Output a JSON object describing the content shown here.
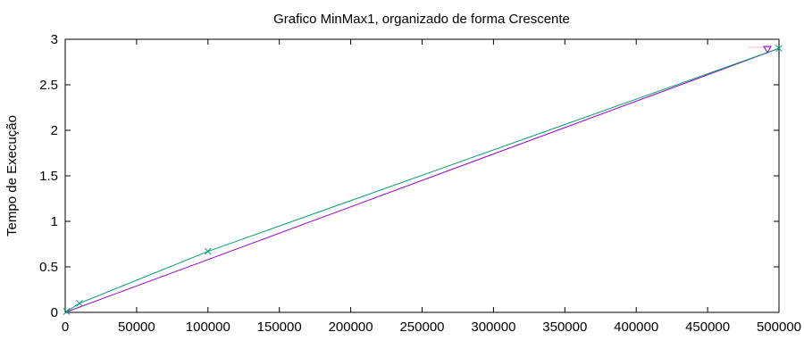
{
  "chart_data": {
    "type": "line",
    "title": "Grafico MinMax1, organizado de forma Crescente",
    "xlabel": "",
    "ylabel": "Tempo de Execução",
    "xlim": [
      0,
      500000
    ],
    "ylim": [
      0,
      3
    ],
    "grid": false,
    "legend": "top-right",
    "x_ticks": [
      "0",
      "50000",
      "100000",
      "150000",
      "200000",
      "250000",
      "300000",
      "350000",
      "400000",
      "450000",
      "500000"
    ],
    "y_ticks": [
      "0",
      "0.5",
      "1",
      "1.5",
      "2",
      "2.5",
      "3"
    ],
    "series": [
      {
        "color": "#9400d3",
        "marker": "none",
        "x": [
          0,
          500000
        ],
        "y": [
          0,
          2.9
        ]
      },
      {
        "color": "#009e73",
        "marker": "x",
        "x": [
          1000,
          10000,
          100000,
          500000
        ],
        "y": [
          0.01,
          0.1,
          0.67,
          2.9
        ]
      }
    ],
    "legend_entry_colors": [
      "#ffb6c1",
      "#9400d3"
    ]
  }
}
